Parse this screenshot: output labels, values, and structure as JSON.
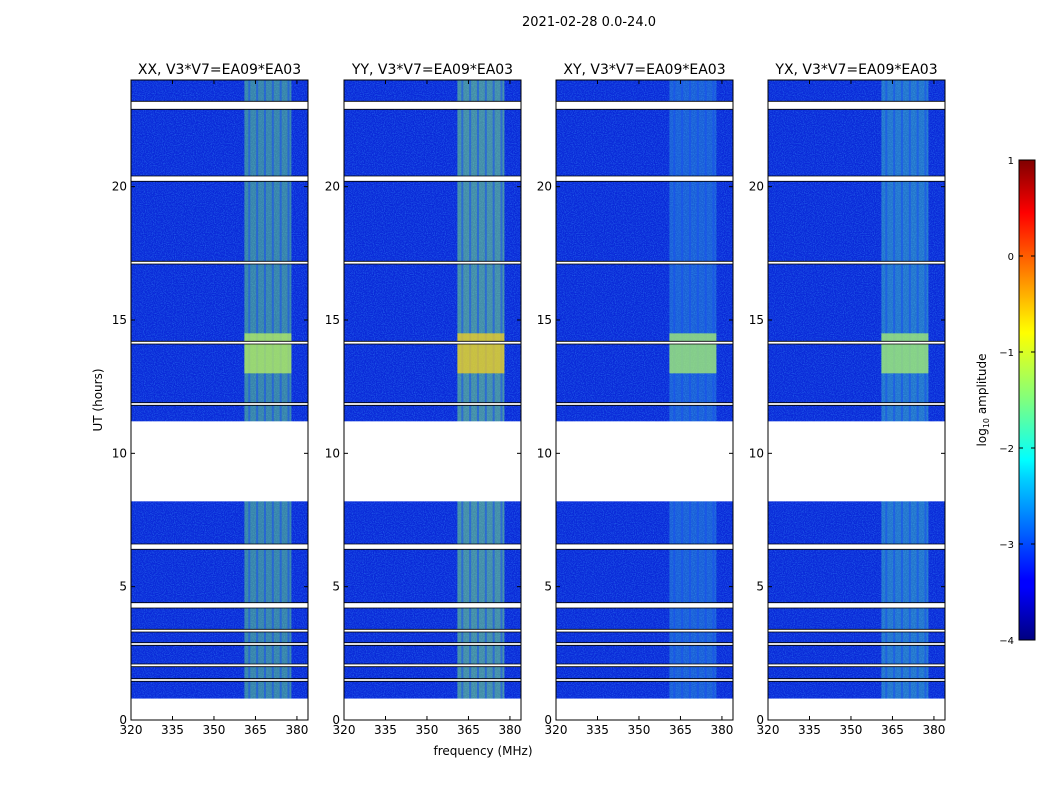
{
  "chart_data": {
    "type": "heatmap",
    "suptitle": "2021-02-28 0.0-24.0",
    "xlabel": "frequency (MHz)",
    "ylabel": "UT (hours)",
    "xlim": [
      320,
      384
    ],
    "ylim": [
      0,
      24
    ],
    "xticks": [
      320,
      335,
      350,
      365,
      380
    ],
    "yticks": [
      0,
      5,
      10,
      15,
      20
    ],
    "panels": [
      {
        "title": "XX, V3*V7=EA09*EA03",
        "polarization": "XX"
      },
      {
        "title": "YY, V3*V7=EA09*EA03",
        "polarization": "YY"
      },
      {
        "title": "XY, V3*V7=EA09*EA03",
        "polarization": "XY"
      },
      {
        "title": "YX, V3*V7=EA09*EA03",
        "polarization": "YX"
      }
    ],
    "data_extent": {
      "freq_min": 320,
      "freq_max": 384,
      "ut_start": 0.8,
      "ut_end": 24.0
    },
    "no_data_ut_ranges": [
      [
        0.0,
        0.8
      ],
      [
        8.2,
        11.2
      ]
    ],
    "flagged_ut_bands": [
      [
        1.45,
        1.55
      ],
      [
        2.0,
        2.1
      ],
      [
        2.8,
        2.9
      ],
      [
        3.3,
        3.4
      ],
      [
        4.2,
        4.4
      ],
      [
        6.4,
        6.6
      ],
      [
        11.8,
        11.9
      ],
      [
        14.1,
        14.2
      ],
      [
        17.1,
        17.2
      ],
      [
        20.2,
        20.4
      ],
      [
        22.9,
        23.2
      ]
    ],
    "rfi_band_MHz": [
      361,
      378
    ],
    "colorbar": {
      "label": "log10 amplitude",
      "label_base": "log",
      "label_sub": "10",
      "label_rest": " amplitude",
      "min": -4,
      "max": 1,
      "ticks": [
        1,
        0,
        -1,
        -2,
        -3,
        -4
      ],
      "colormap": "jet"
    }
  }
}
